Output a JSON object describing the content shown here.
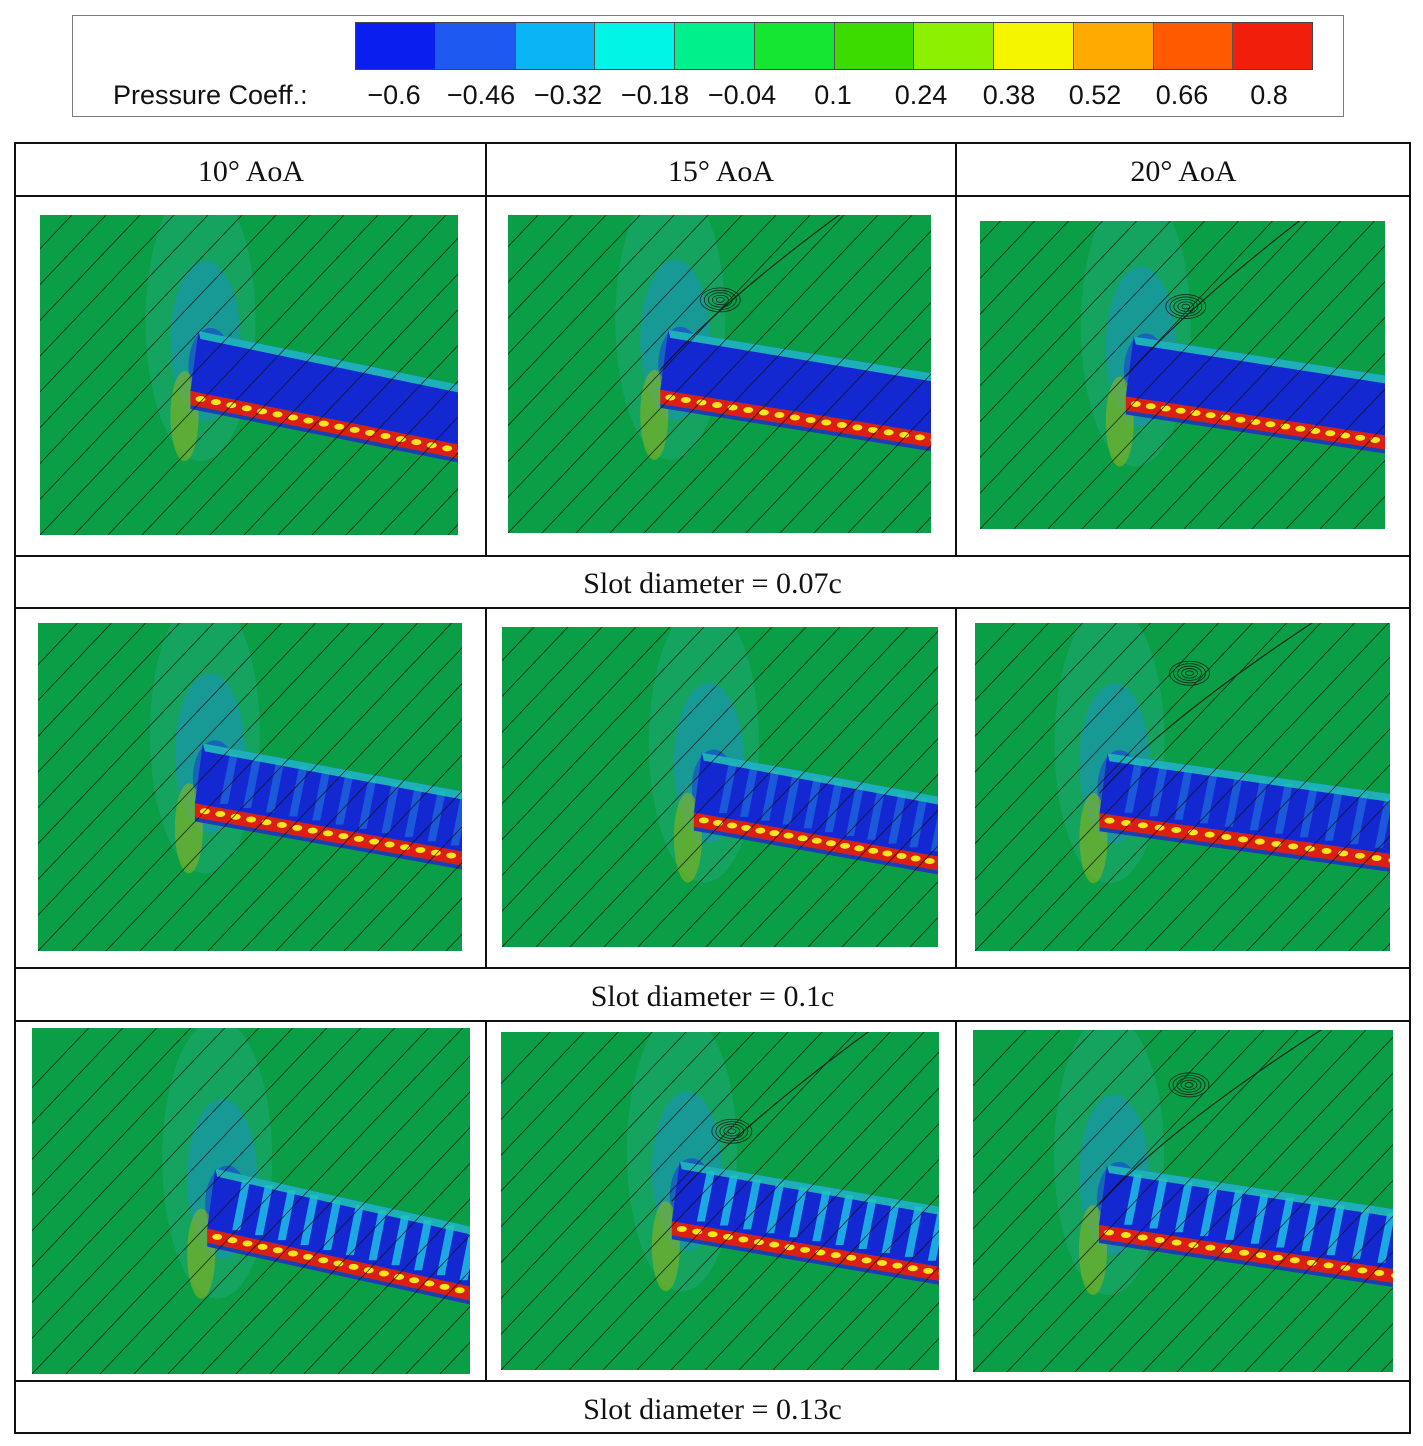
{
  "legend": {
    "label": "Pressure Coeff.:",
    "ticks": [
      "−0.6",
      "−0.46",
      "−0.32",
      "−0.18",
      "−0.04",
      "0.1",
      "0.24",
      "0.38",
      "0.52",
      "0.66",
      "0.8"
    ],
    "colors": [
      "#0a1ef0",
      "#1e5af0",
      "#0ab4f5",
      "#00f5e6",
      "#00f08c",
      "#14e632",
      "#3cdc00",
      "#8cf000",
      "#f5f500",
      "#ffaa00",
      "#ff5a00",
      "#f01e0a"
    ]
  },
  "columns": [
    "10° AoA",
    "15° AoA",
    "20° AoA"
  ],
  "rows": [
    {
      "label": "Slot diameter = 0.07c"
    },
    {
      "label": "Slot diameter = 0.1c"
    },
    {
      "label": "Slot diameter = 0.13c"
    }
  ],
  "colors": {
    "background_green": "#0a9e46",
    "suction_blue": "#1428d2",
    "pressure_red": "#dc1e14",
    "streamline": "#111111"
  }
}
